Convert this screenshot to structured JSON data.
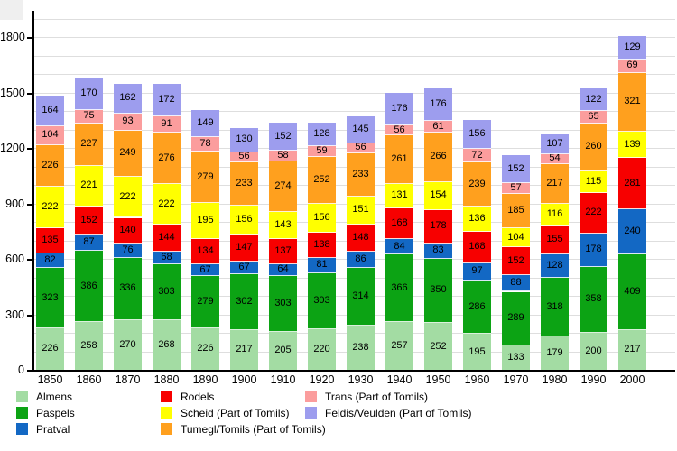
{
  "chart_data": {
    "type": "bar",
    "stacked": true,
    "title": "",
    "xlabel": "",
    "ylabel": "",
    "categories": [
      "1850",
      "1860",
      "1870",
      "1880",
      "1890",
      "1900",
      "1910",
      "1920",
      "1930",
      "1940",
      "1950",
      "1960",
      "1970",
      "1980",
      "1990",
      "2000"
    ],
    "series": [
      {
        "name": "Almens",
        "color": "#a3dca3",
        "values": [
          226,
          258,
          270,
          268,
          226,
          217,
          205,
          220,
          238,
          257,
          252,
          195,
          133,
          179,
          200,
          217
        ]
      },
      {
        "name": "Paspels",
        "color": "#0ca314",
        "values": [
          323,
          386,
          336,
          303,
          279,
          302,
          303,
          303,
          314,
          366,
          350,
          286,
          289,
          318,
          358,
          409
        ]
      },
      {
        "name": "Pratval",
        "color": "#1368c4",
        "values": [
          82,
          87,
          76,
          68,
          67,
          67,
          64,
          81,
          86,
          84,
          83,
          97,
          88,
          128,
          178,
          240
        ]
      },
      {
        "name": "Rodels",
        "color": "#f70000",
        "values": [
          135,
          152,
          140,
          144,
          134,
          147,
          137,
          138,
          148,
          168,
          178,
          168,
          152,
          155,
          222,
          281
        ]
      },
      {
        "name": "Scheid (Part of Tomils)",
        "color": "#ffff00",
        "values": [
          222,
          221,
          222,
          222,
          195,
          156,
          143,
          156,
          151,
          131,
          154,
          136,
          104,
          116,
          115,
          139
        ]
      },
      {
        "name": "Tumegl/Tomils (Part of Tomils)",
        "color": "#ffa01e",
        "values": [
          226,
          227,
          249,
          276,
          279,
          233,
          274,
          252,
          233,
          261,
          266,
          239,
          185,
          217,
          260,
          321
        ]
      },
      {
        "name": "Trans (Part of Tomils)",
        "color": "#fb9d9d",
        "values": [
          104,
          75,
          93,
          91,
          78,
          56,
          58,
          59,
          56,
          56,
          61,
          72,
          57,
          54,
          65,
          69
        ]
      },
      {
        "name": "Feldis/Veulden (Part of Tomils)",
        "color": "#9d9dee",
        "values": [
          164,
          170,
          162,
          172,
          149,
          130,
          152,
          128,
          145,
          176,
          176,
          156,
          152,
          107,
          122,
          129
        ]
      }
    ],
    "ylim": [
      0,
      1940
    ],
    "ytick_labels": [
      "0",
      "300",
      "600",
      "900",
      "1200",
      "1500",
      "1800"
    ],
    "ytick_values": [
      0,
      300,
      600,
      900,
      1200,
      1500,
      1800
    ],
    "grid_step": 100,
    "grid_max": 1900,
    "legend_position": "bottom",
    "legend_columns": [
      [
        "Almens",
        "Paspels",
        "Pratval"
      ],
      [
        "Rodels",
        "Scheid (Part of Tomils)",
        "Tumegl/Tomils (Part of Tomils)"
      ],
      [
        "Trans (Part of Tomils)",
        "Feldis/Veulden (Part of Tomils)"
      ]
    ]
  }
}
